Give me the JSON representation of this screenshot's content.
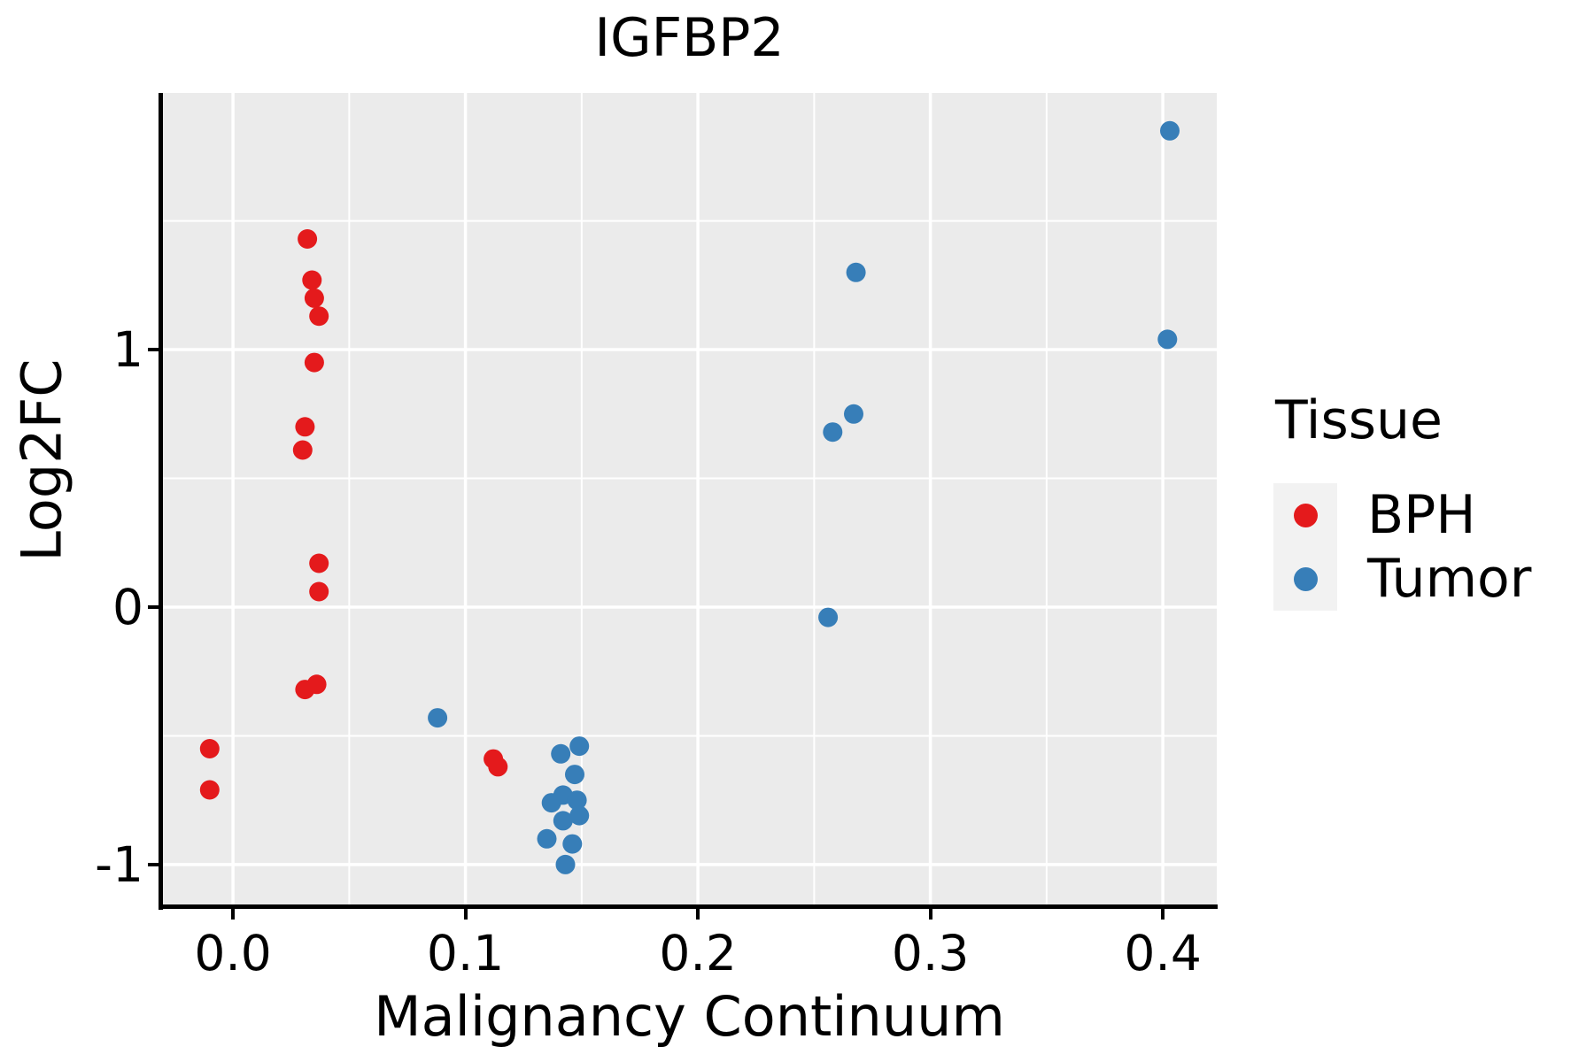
{
  "title": "IGFBP2",
  "axes": {
    "x": {
      "label": "Malignancy Continuum",
      "tick_labels": [
        "0.0",
        "0.1",
        "0.2",
        "0.3",
        "0.4"
      ],
      "tick_values": [
        0.0,
        0.1,
        0.2,
        0.3,
        0.4
      ],
      "minor_values": [
        0.05,
        0.15,
        0.25,
        0.35
      ],
      "range": [
        -0.0305,
        0.4232
      ]
    },
    "y": {
      "label": "Log2FC",
      "tick_labels": [
        "-1",
        "0",
        "1"
      ],
      "tick_values": [
        -1,
        0,
        1
      ],
      "minor_values": [
        -0.5,
        0.5,
        1.5
      ],
      "range": [
        -1.155,
        1.997
      ]
    }
  },
  "legend": {
    "title": "Tissue",
    "position": "right",
    "items": [
      {
        "label": "BPH",
        "color": "#E41A1C"
      },
      {
        "label": "Tumor",
        "color": "#377EB8"
      }
    ]
  },
  "style": {
    "panel_bg": "#EBEBEB",
    "grid_color": "#FFFFFF",
    "legend_key_bg": "#F2F2F2",
    "axis_color": "#000000",
    "point_radius": 11
  },
  "chart_data": {
    "type": "scatter",
    "title": "IGFBP2",
    "xlabel": "Malignancy Continuum",
    "ylabel": "Log2FC",
    "xlim": [
      -0.0305,
      0.4232
    ],
    "ylim": [
      -1.155,
      1.997
    ],
    "grid": "white major+minor on gray panel",
    "legend_position": "right",
    "series": [
      {
        "name": "BPH",
        "color": "#E41A1C",
        "points": [
          [
            -0.01,
            -0.55
          ],
          [
            -0.01,
            -0.71
          ],
          [
            0.03,
            0.61
          ],
          [
            0.031,
            0.7
          ],
          [
            0.032,
            1.43
          ],
          [
            0.034,
            1.27
          ],
          [
            0.035,
            1.2
          ],
          [
            0.037,
            1.13
          ],
          [
            0.035,
            0.95
          ],
          [
            0.037,
            0.17
          ],
          [
            0.037,
            0.06
          ],
          [
            0.031,
            -0.32
          ],
          [
            0.036,
            -0.3
          ],
          [
            0.112,
            -0.59
          ],
          [
            0.114,
            -0.62
          ]
        ]
      },
      {
        "name": "Tumor",
        "color": "#377EB8",
        "points": [
          [
            0.088,
            -0.43
          ],
          [
            0.141,
            -0.57
          ],
          [
            0.149,
            -0.54
          ],
          [
            0.147,
            -0.65
          ],
          [
            0.142,
            -0.73
          ],
          [
            0.137,
            -0.76
          ],
          [
            0.148,
            -0.75
          ],
          [
            0.142,
            -0.83
          ],
          [
            0.149,
            -0.81
          ],
          [
            0.135,
            -0.9
          ],
          [
            0.146,
            -0.92
          ],
          [
            0.143,
            -1.0
          ],
          [
            0.256,
            -0.04
          ],
          [
            0.258,
            0.68
          ],
          [
            0.267,
            0.75
          ],
          [
            0.268,
            1.3
          ],
          [
            0.402,
            1.04
          ],
          [
            0.403,
            1.85
          ]
        ]
      }
    ]
  }
}
